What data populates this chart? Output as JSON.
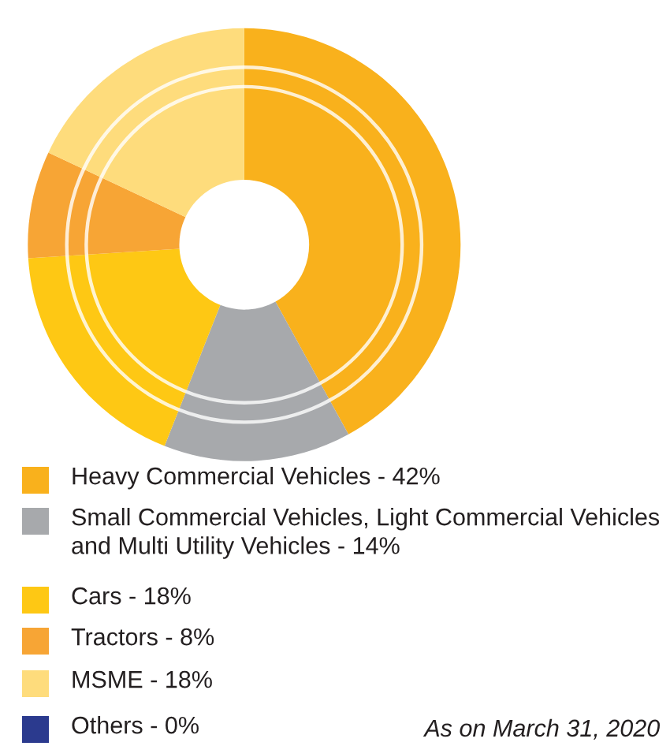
{
  "chart_data": {
    "type": "donut",
    "categories": [
      "Heavy Commercial Vehicles",
      "Small Commercial Vehicles, Light Commercial Vehicles and Multi Utility Vehicles",
      "Cars",
      "Tractors",
      "MSME",
      "Others"
    ],
    "values": [
      42,
      14,
      18,
      8,
      18,
      0
    ],
    "value_labels": [
      "42%",
      "14%",
      "18%",
      "8%",
      "18%",
      "0%"
    ],
    "colors": [
      "#f9b11c",
      "#a7a9ac",
      "#fec814",
      "#f7a535",
      "#fedc7c",
      "#2b3a8e"
    ],
    "legend": "bottom",
    "annotations": [
      "As on March 31, 2020"
    ]
  }
}
